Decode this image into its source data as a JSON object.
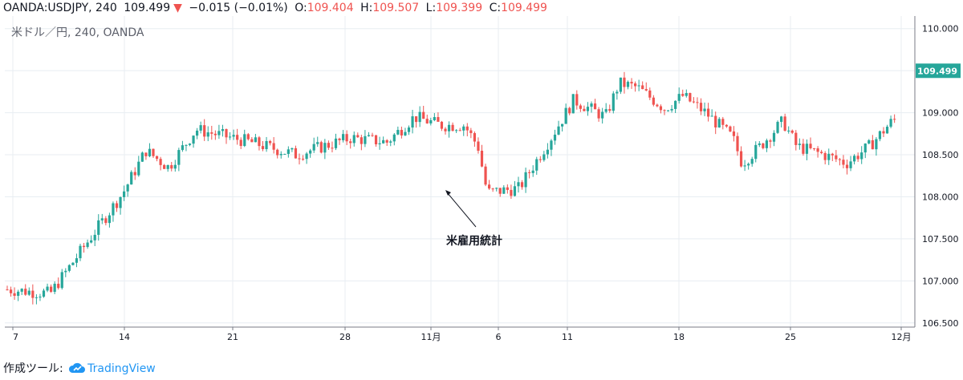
{
  "header": {
    "symbol": "OANDA:USDJPY, 240",
    "last": "109.499",
    "change_arrow": "▼",
    "change": "−0.015 (−0.01%)",
    "open_label": "O:",
    "open": "109.404",
    "high_label": "H:",
    "high": "109.507",
    "low_label": "L:",
    "low": "109.399",
    "close_label": "C:",
    "close": "109.499"
  },
  "footer": {
    "label": "作成ツール:",
    "brand": "TradingView"
  },
  "colors": {
    "up": "#26a69a",
    "down": "#ef5350",
    "grid": "#e8edf2",
    "axis_text": "#131722",
    "price_tag": "#26a69a"
  },
  "chart_data": {
    "type": "candlestick",
    "title": "米ドル／円, 240, OANDA",
    "ylim": [
      106.45,
      110.15
    ],
    "y_ticks": [
      "110.000",
      "109.500",
      "109.000",
      "108.500",
      "108.000",
      "107.500",
      "107.000",
      "106.500"
    ],
    "x_ticks": [
      "7",
      "14",
      "21",
      "28",
      "11月",
      "6",
      "11",
      "18",
      "25",
      "12月"
    ],
    "last_price": "109.499",
    "annotation": {
      "text": "米雇用統計",
      "target": "11月 初旬の安値 (約108.00)"
    },
    "anchors": [
      {
        "x": 0,
        "y": 106.9
      },
      {
        "x": 0.05,
        "y": 106.85
      },
      {
        "x": 0.09,
        "y": 107.45
      },
      {
        "x": 0.13,
        "y": 108.05
      },
      {
        "x": 0.155,
        "y": 108.55
      },
      {
        "x": 0.18,
        "y": 108.35
      },
      {
        "x": 0.21,
        "y": 108.8
      },
      {
        "x": 0.27,
        "y": 108.65
      },
      {
        "x": 0.32,
        "y": 108.5
      },
      {
        "x": 0.38,
        "y": 108.7
      },
      {
        "x": 0.42,
        "y": 108.65
      },
      {
        "x": 0.45,
        "y": 108.95
      },
      {
        "x": 0.48,
        "y": 108.85
      },
      {
        "x": 0.505,
        "y": 108.85
      },
      {
        "x": 0.52,
        "y": 108.6
      },
      {
        "x": 0.53,
        "y": 108.05
      },
      {
        "x": 0.565,
        "y": 108.1
      },
      {
        "x": 0.6,
        "y": 108.7
      },
      {
        "x": 0.625,
        "y": 109.15
      },
      {
        "x": 0.66,
        "y": 108.95
      },
      {
        "x": 0.675,
        "y": 109.35
      },
      {
        "x": 0.695,
        "y": 109.3
      },
      {
        "x": 0.725,
        "y": 109.05
      },
      {
        "x": 0.745,
        "y": 109.2
      },
      {
        "x": 0.77,
        "y": 109.0
      },
      {
        "x": 0.8,
        "y": 108.7
      },
      {
        "x": 0.81,
        "y": 108.4
      },
      {
        "x": 0.83,
        "y": 108.6
      },
      {
        "x": 0.855,
        "y": 108.9
      },
      {
        "x": 0.87,
        "y": 108.6
      },
      {
        "x": 0.9,
        "y": 108.5
      },
      {
        "x": 0.925,
        "y": 108.4
      },
      {
        "x": 0.95,
        "y": 108.6
      },
      {
        "x": 0.975,
        "y": 108.9
      },
      {
        "x": 1.0,
        "y": 109.05
      },
      {
        "x": 1.03,
        "y": 109.2
      },
      {
        "x": 1.05,
        "y": 109.5
      },
      {
        "x": 1.08,
        "y": 109.5
      }
    ]
  }
}
